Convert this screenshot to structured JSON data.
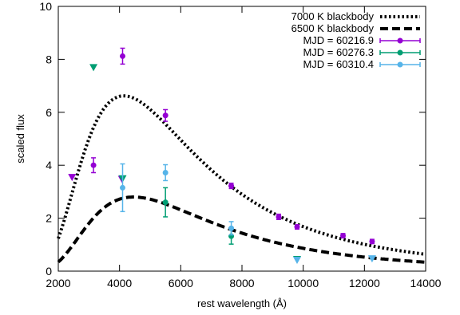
{
  "chart_data": {
    "type": "scatter",
    "xlabel": "rest wavelength (Å)",
    "ylabel": "scaled flux",
    "xlim": [
      2000,
      14000
    ],
    "ylim": [
      0,
      10
    ],
    "xticks": [
      2000,
      4000,
      6000,
      8000,
      10000,
      12000,
      14000
    ],
    "yticks": [
      0,
      2,
      4,
      6,
      8,
      10
    ],
    "grid": false,
    "legend_position": "top-right",
    "curves": [
      {
        "name": "7000 K blackbody",
        "style": "dotted",
        "color": "#000000",
        "temperature_K": 7000,
        "peak": 6.62
      },
      {
        "name": "6500 K blackbody",
        "style": "dashed",
        "color": "#000000",
        "temperature_K": 6500,
        "peak": 2.8
      }
    ],
    "series": [
      {
        "name": "MJD = 60216.9",
        "color": "#9400d3",
        "points": [
          {
            "x": 4100,
            "y": 8.12,
            "yerr": 0.3
          },
          {
            "x": 3150,
            "y": 4.0,
            "yerr": 0.28
          },
          {
            "x": 5500,
            "y": 5.88,
            "yerr": 0.22
          },
          {
            "x": 7650,
            "y": 3.22,
            "yerr": 0.1
          },
          {
            "x": 9200,
            "y": 2.05,
            "yerr": 0.1
          },
          {
            "x": 9800,
            "y": 1.67,
            "yerr": 0.08
          },
          {
            "x": 11300,
            "y": 1.34,
            "yerr": 0.08
          },
          {
            "x": 12250,
            "y": 1.12,
            "yerr": 0.08
          }
        ],
        "upper_limits": [
          {
            "x": 2450,
            "y": 3.55
          },
          {
            "x": 4080,
            "y": 3.48
          }
        ]
      },
      {
        "name": "MJD = 60276.3",
        "color": "#009e73",
        "points": [
          {
            "x": 5500,
            "y": 2.6,
            "yerr": 0.55
          },
          {
            "x": 7650,
            "y": 1.32,
            "yerr": 0.3
          }
        ],
        "upper_limits": [
          {
            "x": 3150,
            "y": 7.7
          },
          {
            "x": 4100,
            "y": 3.5
          },
          {
            "x": 9800,
            "y": 0.45
          }
        ]
      },
      {
        "name": "MJD = 60310.4",
        "color": "#56b4e9",
        "points": [
          {
            "x": 4100,
            "y": 3.15,
            "yerr": 0.9
          },
          {
            "x": 5500,
            "y": 3.72,
            "yerr": 0.3
          },
          {
            "x": 7650,
            "y": 1.62,
            "yerr": 0.25
          }
        ],
        "upper_limits": [
          {
            "x": 9800,
            "y": 0.42
          },
          {
            "x": 12250,
            "y": 0.48
          }
        ]
      }
    ]
  }
}
